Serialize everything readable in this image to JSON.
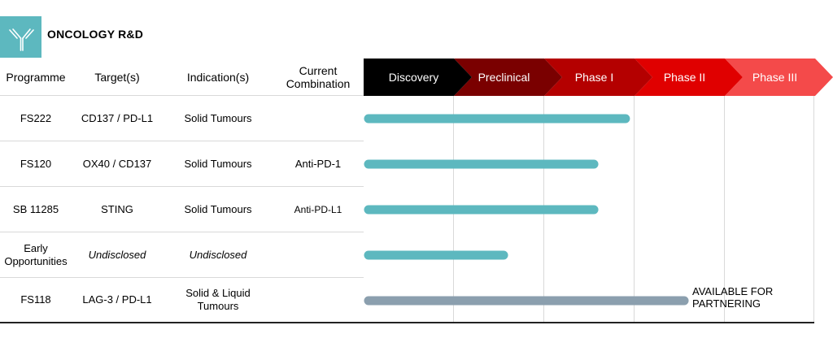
{
  "header": {
    "title": "ONCOLOGY R&D"
  },
  "columns": {
    "programme": "Programme",
    "targets": "Target(s)",
    "indication": "Indication(s)",
    "combination": "Current Combination"
  },
  "rows": [
    {
      "programme": "FS222",
      "target": "CD137 / PD-L1",
      "indication": "Solid Tumours",
      "combination": "",
      "target_italic": false
    },
    {
      "programme": "FS120",
      "target": "OX40 / CD137",
      "indication": "Solid Tumours",
      "combination": "Anti-PD-1",
      "target_italic": false
    },
    {
      "programme": "SB 11285",
      "target": "STING",
      "indication": "Solid Tumours",
      "combination": "Anti-PD-L1",
      "target_italic": false
    },
    {
      "programme": "Early Opportunities",
      "target": "Undisclosed",
      "indication": "Undisclosed",
      "combination": "",
      "target_italic": true
    },
    {
      "programme": "FS118",
      "target": "LAG-3 / PD-L1",
      "indication": "Solid & Liquid Tumours",
      "combination": "",
      "target_italic": false
    }
  ],
  "note": "AVAILABLE FOR PARTNERING",
  "chart_data": {
    "type": "bar",
    "orientation": "horizontal",
    "categories": [
      "FS222",
      "FS120",
      "SB 11285",
      "Early Opportunities",
      "FS118"
    ],
    "stages": [
      "Discovery",
      "Preclinical",
      "Phase I",
      "Phase II",
      "Phase III"
    ],
    "stage_colors": [
      "#000000",
      "#7a0000",
      "#b40000",
      "#e00000",
      "#f44a4a"
    ],
    "values": [
      2.9,
      2.55,
      2.55,
      1.55,
      3.55
    ],
    "value_unit": "stages completed",
    "xlim": [
      0,
      5
    ],
    "bar_colors": [
      "#5db8bf",
      "#5db8bf",
      "#5db8bf",
      "#5db8bf",
      "#8b9fae"
    ]
  }
}
